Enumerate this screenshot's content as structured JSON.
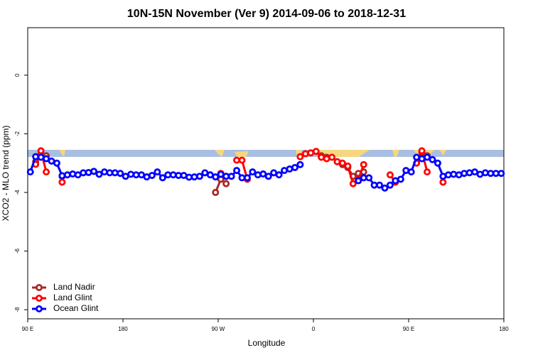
{
  "chart_data": {
    "type": "line",
    "title": "10N-15N November (Ver 9)   2014-09-06 to 2018-12-31",
    "x_label": "Longitude",
    "y_label": "XCO2 - MLO trend (ppm)",
    "xlim": [
      90,
      540
    ],
    "xticks": [
      {
        "value": 90,
        "label": "90 E"
      },
      {
        "value": 180,
        "label": "180"
      },
      {
        "value": 270,
        "label": "90 W"
      },
      {
        "value": 360,
        "label": "0"
      },
      {
        "value": 450,
        "label": "90 E"
      },
      {
        "value": 540,
        "label": "180"
      }
    ],
    "ylim": [
      -8.31,
      1.62
    ],
    "yticks": [
      0,
      -2,
      -4,
      -6,
      -8
    ],
    "legend": "bottom-left",
    "x": [
      92.5,
      97.5,
      102.5,
      107.5,
      112.5,
      117.5,
      122.5,
      127.5,
      132.5,
      137.5,
      142.5,
      147.5,
      152.5,
      157.5,
      162.5,
      167.5,
      172.5,
      177.5,
      182.5,
      187.5,
      192.5,
      197.5,
      202.5,
      207.5,
      212.5,
      217.5,
      222.5,
      227.5,
      232.5,
      237.5,
      242.5,
      247.5,
      252.5,
      257.5,
      262.5,
      267.5,
      272.5,
      277.5,
      282.5,
      287.5,
      292.5,
      297.5,
      302.5,
      307.5,
      312.5,
      317.5,
      322.5,
      327.5,
      332.5,
      337.5,
      342.5,
      347.5,
      352.5,
      357.5,
      362.5,
      367.5,
      372.5,
      377.5,
      382.5,
      387.5,
      392.5,
      397.5,
      402.5,
      407.5,
      412.5,
      417.5,
      422.5,
      427.5,
      432.5,
      437.5,
      442.5,
      447.5,
      452.5,
      457.5,
      462.5,
      467.5,
      472.5,
      477.5,
      482.5,
      487.5,
      492.5,
      497.5,
      502.5,
      507.5,
      512.5,
      517.5,
      522.5,
      527.5,
      532.5,
      537.5
    ],
    "series": [
      {
        "name": "Land Nadir",
        "color": "#a52a2a",
        "values": [
          null,
          -2.95,
          -2.7,
          -2.75,
          null,
          null,
          -3.45,
          null,
          null,
          null,
          null,
          null,
          null,
          null,
          null,
          null,
          null,
          null,
          null,
          null,
          null,
          null,
          null,
          null,
          null,
          null,
          null,
          null,
          null,
          null,
          null,
          null,
          null,
          null,
          null,
          -4.0,
          -3.55,
          -3.7,
          null,
          null,
          null,
          null,
          null,
          null,
          null,
          null,
          null,
          null,
          null,
          null,
          null,
          null,
          null,
          null,
          null,
          -2.75,
          -2.8,
          null,
          null,
          -3.05,
          -3.15,
          -3.45,
          -3.35,
          -3.3,
          null,
          null,
          null,
          null,
          null,
          null,
          null,
          null,
          null,
          null,
          -2.65,
          -2.75,
          null,
          null,
          null,
          null,
          null,
          null,
          null,
          null,
          null,
          null,
          null,
          null,
          null,
          null
        ]
      },
      {
        "name": "Land Glint",
        "color": "#ff0000",
        "values": [
          null,
          -3.04,
          -2.58,
          -3.3,
          null,
          null,
          -3.65,
          null,
          null,
          null,
          null,
          null,
          null,
          null,
          null,
          null,
          null,
          null,
          null,
          null,
          null,
          null,
          null,
          null,
          null,
          null,
          null,
          null,
          null,
          null,
          null,
          null,
          null,
          null,
          null,
          null,
          -3.35,
          -3.45,
          null,
          -2.9,
          -2.9,
          -3.55,
          null,
          null,
          null,
          null,
          null,
          null,
          null,
          null,
          null,
          -2.78,
          -2.68,
          -2.65,
          -2.6,
          -2.8,
          -2.85,
          -2.8,
          -2.95,
          -3.0,
          -3.1,
          -3.7,
          -3.55,
          -3.05,
          null,
          null,
          null,
          null,
          -3.4,
          -3.65,
          null,
          null,
          null,
          -3.0,
          -2.58,
          -3.3,
          null,
          null,
          -3.65,
          null,
          null,
          null,
          null,
          null,
          null,
          null,
          null,
          null,
          null,
          null
        ]
      },
      {
        "name": "Ocean Glint",
        "color": "#0000ff",
        "values": [
          -3.3,
          -2.78,
          -2.8,
          -2.85,
          -2.93,
          -3.0,
          -3.43,
          -3.4,
          -3.37,
          -3.4,
          -3.33,
          -3.32,
          -3.28,
          -3.38,
          -3.3,
          -3.33,
          -3.33,
          -3.35,
          -3.45,
          -3.38,
          -3.4,
          -3.4,
          -3.47,
          -3.42,
          -3.3,
          -3.5,
          -3.4,
          -3.4,
          -3.42,
          -3.42,
          -3.48,
          -3.47,
          -3.45,
          -3.33,
          -3.4,
          -3.47,
          -3.38,
          -3.45,
          -3.45,
          -3.25,
          -3.5,
          -3.5,
          -3.3,
          -3.4,
          -3.37,
          -3.45,
          -3.33,
          -3.4,
          -3.25,
          -3.2,
          -3.15,
          -3.05,
          null,
          null,
          null,
          null,
          null,
          null,
          null,
          null,
          null,
          null,
          -3.6,
          -3.5,
          -3.5,
          -3.75,
          -3.75,
          -3.85,
          -3.75,
          -3.6,
          -3.55,
          -3.25,
          -3.3,
          -2.8,
          -2.85,
          -2.8,
          -2.88,
          -3.0,
          -3.45,
          -3.4,
          -3.38,
          -3.4,
          -3.35,
          -3.33,
          -3.3,
          -3.38,
          -3.33,
          -3.35,
          -3.35,
          -3.35
        ]
      }
    ]
  }
}
